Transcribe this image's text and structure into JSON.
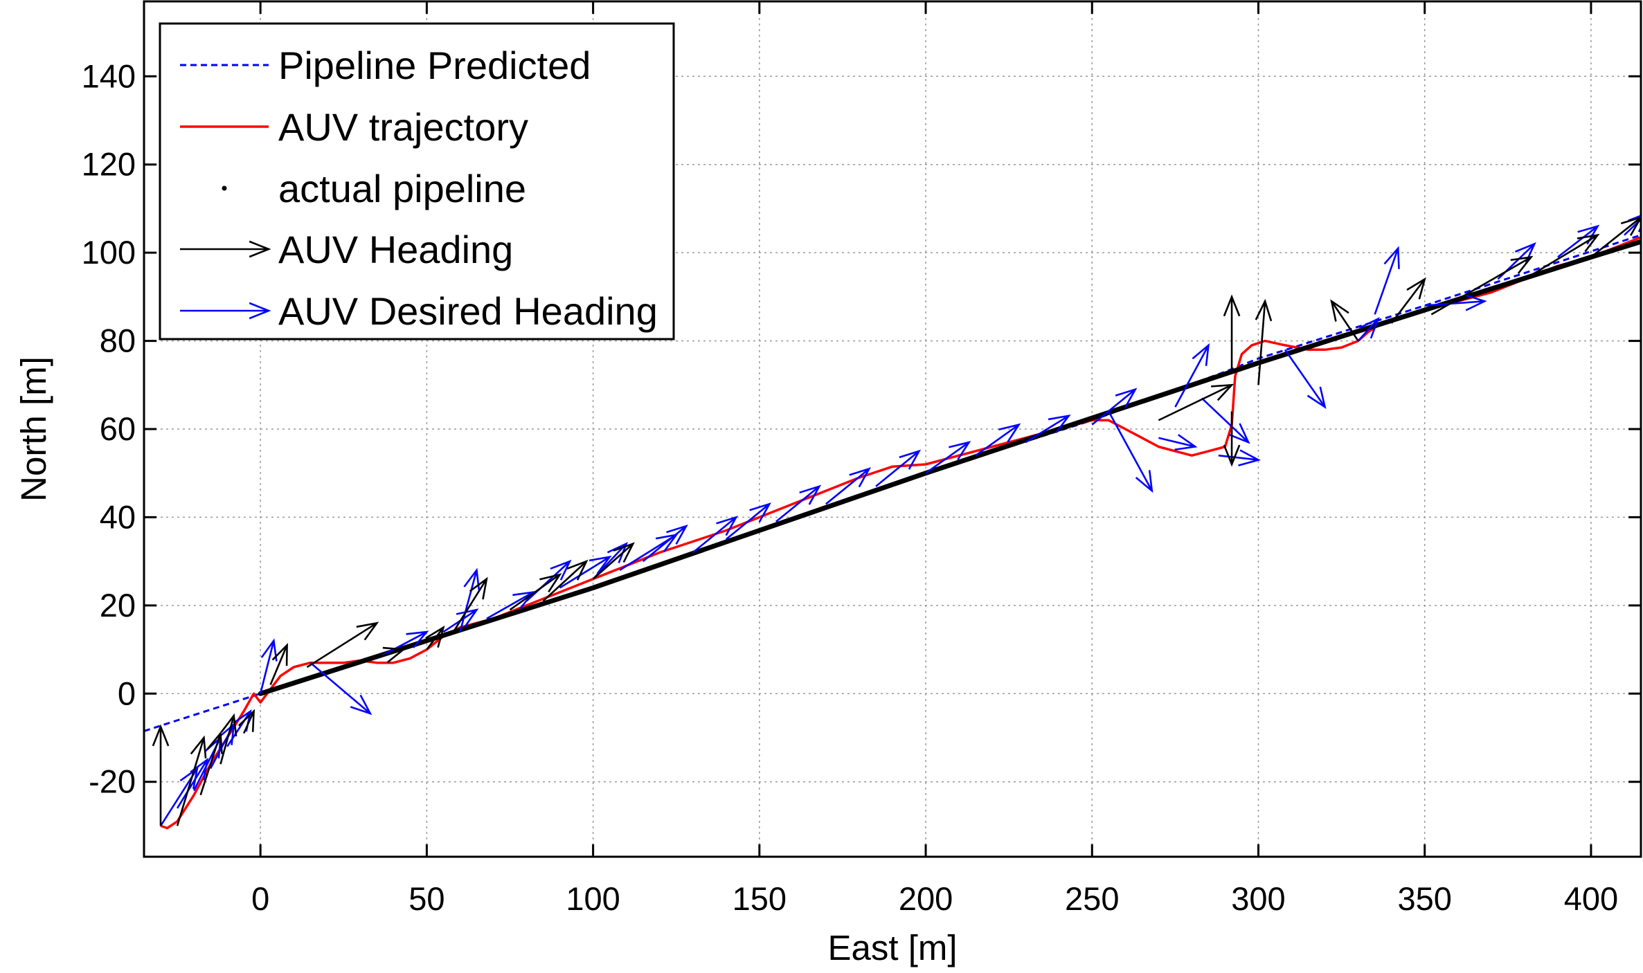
{
  "chart_data": {
    "type": "line",
    "title": "",
    "xlabel": "East [m]",
    "ylabel": "North [m]",
    "xlim": [
      -35,
      415
    ],
    "ylim": [
      -37,
      157
    ],
    "xticks": [
      0,
      50,
      100,
      150,
      200,
      250,
      300,
      350,
      400
    ],
    "yticks": [
      -20,
      0,
      20,
      40,
      60,
      80,
      100,
      120,
      140
    ],
    "grid": true,
    "legend_position": "top-left",
    "colors": {
      "pipeline_predicted": "#0000ff",
      "auv_trajectory": "#ff0000",
      "actual_pipeline": "#000000",
      "auv_heading": "#000000",
      "auv_desired_heading": "#0000ff"
    },
    "series": [
      {
        "name": "Pipeline Predicted",
        "style": "dashed",
        "color": "#0000ff",
        "x": [
          -35,
          0,
          50,
          100,
          150,
          200,
          250,
          270,
          290,
          300,
          350,
          415
        ],
        "y": [
          -8.5,
          0,
          12,
          24,
          37,
          50,
          62,
          67.5,
          73,
          76,
          88,
          104
        ]
      },
      {
        "name": "AUV trajectory",
        "style": "solid",
        "color": "#ff0000",
        "x": [
          -30,
          -28,
          -25,
          -20,
          -15,
          -10,
          -5,
          -2,
          0,
          3,
          6,
          10,
          15,
          20,
          25,
          30,
          35,
          40,
          45,
          50,
          55,
          60,
          65,
          70,
          80,
          90,
          100,
          110,
          120,
          130,
          140,
          150,
          160,
          170,
          180,
          190,
          200,
          210,
          220,
          230,
          240,
          250,
          255,
          260,
          265,
          270,
          275,
          280,
          285,
          290,
          292,
          293,
          295,
          298,
          302,
          308,
          315,
          320,
          325,
          330,
          333,
          337,
          342,
          350,
          360,
          370,
          380,
          390,
          400,
          415
        ],
        "y": [
          -30,
          -30.5,
          -29,
          -23,
          -16,
          -10,
          -4,
          0,
          -2,
          1,
          4,
          6,
          7,
          7,
          7,
          7.5,
          7,
          7,
          8,
          10,
          13,
          15,
          16,
          17,
          20,
          23,
          26,
          29,
          32,
          34.5,
          37,
          40,
          43,
          46,
          49,
          51.5,
          52,
          54,
          56,
          58,
          60,
          62,
          62,
          60,
          58,
          56,
          55,
          54,
          55,
          56,
          61,
          72,
          77,
          79,
          80,
          79,
          78,
          78,
          78.5,
          80,
          82,
          84,
          85,
          87,
          89,
          91,
          94,
          97,
          99,
          103.5
        ]
      },
      {
        "name": "actual pipeline",
        "style": "dots",
        "color": "#000000",
        "x": [
          0,
          25,
          50,
          75,
          100,
          125,
          150,
          175,
          200,
          280,
          300,
          325,
          350,
          375,
          400,
          415
        ],
        "y": [
          0,
          6,
          12,
          18,
          24,
          30.5,
          37,
          43.5,
          50,
          70,
          75,
          81,
          87,
          93,
          99,
          102.5
        ]
      }
    ],
    "heading_arrows": {
      "name": "AUV Heading",
      "color": "#000000",
      "start": [
        [
          -30,
          -30
        ],
        [
          -25,
          -30
        ],
        [
          -18,
          -23
        ],
        [
          -12,
          -16
        ],
        [
          -5,
          -9
        ],
        [
          3,
          2
        ],
        [
          14,
          6
        ],
        [
          30,
          7
        ],
        [
          50,
          10
        ],
        [
          58,
          14
        ],
        [
          75,
          19
        ],
        [
          85,
          21
        ],
        [
          100,
          26
        ],
        [
          270,
          62
        ],
        [
          292,
          64
        ],
        [
          292,
          73
        ],
        [
          300,
          70
        ],
        [
          330,
          80
        ],
        [
          340,
          84
        ],
        [
          352,
          86
        ],
        [
          380,
          94
        ],
        [
          400,
          99
        ]
      ],
      "end": [
        [
          -30,
          -7.5
        ],
        [
          -17,
          -10
        ],
        [
          -12,
          -9
        ],
        [
          -8,
          -5
        ],
        [
          -2,
          -4
        ],
        [
          8,
          11
        ],
        [
          35,
          16
        ],
        [
          43,
          10
        ],
        [
          55,
          15
        ],
        [
          68,
          26
        ],
        [
          90,
          27
        ],
        [
          98,
          30
        ],
        [
          112,
          34
        ],
        [
          292,
          70
        ],
        [
          292,
          52
        ],
        [
          292,
          90
        ],
        [
          302,
          89
        ],
        [
          322,
          89
        ],
        [
          350,
          94
        ],
        [
          382,
          99
        ],
        [
          402,
          104
        ],
        [
          415,
          108
        ]
      ]
    },
    "desired_heading_arrows": {
      "name": "AUV Desired Heading",
      "color": "#0000ff",
      "start": [
        [
          -30,
          -30
        ],
        [
          -25,
          -26
        ],
        [
          -20,
          -22
        ],
        [
          -15,
          -17
        ],
        [
          -10,
          -12
        ],
        [
          0,
          0
        ],
        [
          15,
          7
        ],
        [
          35,
          8
        ],
        [
          55,
          14
        ],
        [
          60,
          14
        ],
        [
          68,
          17
        ],
        [
          80,
          21
        ],
        [
          90,
          24
        ],
        [
          100,
          26
        ],
        [
          108,
          28
        ],
        [
          115,
          30
        ],
        [
          130,
          32
        ],
        [
          140,
          35
        ],
        [
          155,
          39
        ],
        [
          170,
          43
        ],
        [
          185,
          47
        ],
        [
          200,
          50
        ],
        [
          215,
          54
        ],
        [
          230,
          57
        ],
        [
          250,
          61
        ],
        [
          255,
          64
        ],
        [
          270,
          58
        ],
        [
          275,
          65
        ],
        [
          283,
          67
        ],
        [
          288,
          54
        ],
        [
          308,
          78
        ],
        [
          330,
          80
        ],
        [
          335,
          86
        ],
        [
          350,
          88
        ],
        [
          372,
          94
        ],
        [
          390,
          99
        ],
        [
          410,
          104
        ]
      ],
      "end": [
        [
          -19,
          -17
        ],
        [
          -16,
          -15
        ],
        [
          -12,
          -10
        ],
        [
          -8,
          -7
        ],
        [
          -3,
          -4
        ],
        [
          4,
          12
        ],
        [
          33,
          -4.5
        ],
        [
          50,
          14
        ],
        [
          65,
          19
        ],
        [
          65,
          28
        ],
        [
          82,
          23
        ],
        [
          93,
          30
        ],
        [
          105,
          31
        ],
        [
          110,
          34
        ],
        [
          125,
          36
        ],
        [
          128,
          38
        ],
        [
          143,
          40
        ],
        [
          153,
          43
        ],
        [
          168,
          47
        ],
        [
          183,
          51
        ],
        [
          198,
          55
        ],
        [
          213,
          57
        ],
        [
          228,
          61
        ],
        [
          243,
          63
        ],
        [
          263,
          69
        ],
        [
          268,
          46
        ],
        [
          281,
          56
        ],
        [
          285,
          79
        ],
        [
          297,
          57
        ],
        [
          300,
          53
        ],
        [
          320,
          65
        ],
        [
          336,
          85
        ],
        [
          342,
          101
        ],
        [
          368,
          89
        ],
        [
          383,
          102
        ],
        [
          402,
          106
        ],
        [
          417,
          109
        ]
      ]
    }
  },
  "legend": {
    "items": [
      {
        "label": "Pipeline Predicted",
        "kind": "dashed-line",
        "color": "#0000ff"
      },
      {
        "label": "AUV trajectory",
        "kind": "solid-line",
        "color": "#ff0000"
      },
      {
        "label": "actual pipeline",
        "kind": "dot",
        "color": "#000000"
      },
      {
        "label": "AUV Heading",
        "kind": "arrow",
        "color": "#000000"
      },
      {
        "label": "AUV Desired Heading",
        "kind": "arrow",
        "color": "#0000ff"
      }
    ]
  }
}
